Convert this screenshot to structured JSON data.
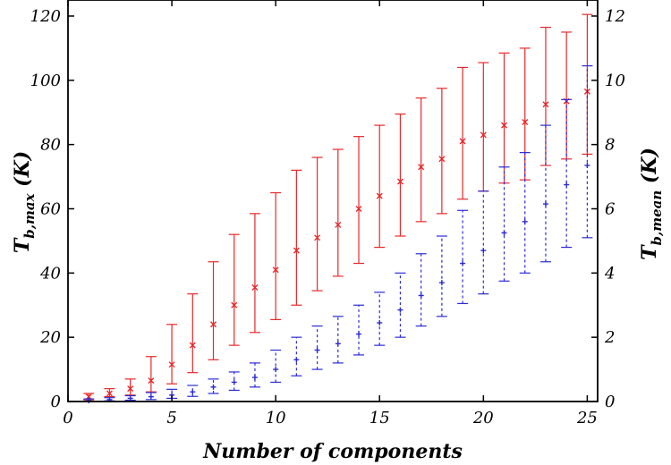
{
  "chart_data": {
    "type": "scatter",
    "xlabel": "Number of components",
    "ylabel_left": {
      "main": "T",
      "sub": "b,max",
      "unit": " (K)"
    },
    "ylabel_right": {
      "main": "T",
      "sub": "b,mean",
      "unit": " (K)"
    },
    "xlim": [
      0,
      25.5
    ],
    "ylim_left": [
      0,
      125
    ],
    "ylim_right": [
      0,
      12.5
    ],
    "x_ticks": [
      0,
      5,
      10,
      15,
      20,
      25
    ],
    "y_ticks_left": [
      0,
      20,
      40,
      60,
      80,
      100,
      120
    ],
    "y_ticks_right": [
      0,
      2,
      4,
      6,
      8,
      10,
      12
    ],
    "grid": false,
    "series": [
      {
        "axis": "left",
        "marker": "x",
        "line": "solid",
        "color": "#e8282a",
        "x": [
          1,
          2,
          3,
          4,
          5,
          6,
          7,
          8,
          9,
          10,
          11,
          12,
          13,
          14,
          15,
          16,
          17,
          18,
          19,
          20,
          21,
          22,
          23,
          24,
          25
        ],
        "y": [
          1.5,
          2.5,
          4,
          6.5,
          11.5,
          17.5,
          24,
          30,
          35.5,
          41,
          47,
          51,
          55,
          60,
          64,
          68.5,
          73,
          75.5,
          81,
          83,
          86,
          87,
          92.5,
          93.5,
          96.5
        ],
        "err_low": [
          0.5,
          1.5,
          2,
          3,
          5.5,
          9,
          13,
          17.5,
          21.5,
          25.5,
          30,
          34.5,
          39,
          43,
          48,
          51.5,
          56,
          58.5,
          63,
          65.5,
          68,
          69,
          73.5,
          75.5,
          77
        ],
        "err_high": [
          2.5,
          4,
          7,
          14,
          24,
          33.5,
          43.5,
          52,
          58.5,
          65,
          72,
          76,
          78.5,
          82.5,
          86,
          89.5,
          94.5,
          97.5,
          104,
          105.5,
          108.5,
          110,
          116.5,
          115,
          120.5
        ]
      },
      {
        "axis": "right",
        "marker": "+",
        "line": "dashed",
        "color": "#2b2bd6",
        "x": [
          1,
          2,
          3,
          4,
          5,
          6,
          7,
          8,
          9,
          10,
          11,
          12,
          13,
          14,
          15,
          16,
          17,
          18,
          19,
          20,
          21,
          22,
          23,
          24,
          25
        ],
        "y": [
          0.03,
          0.06,
          0.1,
          0.15,
          0.2,
          0.3,
          0.45,
          0.6,
          0.75,
          1.0,
          1.3,
          1.6,
          1.8,
          2.1,
          2.45,
          2.85,
          3.3,
          3.7,
          4.3,
          4.7,
          5.25,
          5.6,
          6.15,
          6.75,
          7.35
        ],
        "err_low": [
          0.0,
          0.02,
          0.04,
          0.06,
          0.1,
          0.16,
          0.25,
          0.35,
          0.45,
          0.6,
          0.8,
          1.0,
          1.2,
          1.45,
          1.75,
          2.0,
          2.35,
          2.65,
          3.05,
          3.35,
          3.75,
          4.0,
          4.35,
          4.8,
          5.1
        ],
        "err_high": [
          0.08,
          0.12,
          0.18,
          0.28,
          0.38,
          0.5,
          0.7,
          0.92,
          1.2,
          1.6,
          2.0,
          2.35,
          2.65,
          3.0,
          3.4,
          4.0,
          4.6,
          5.15,
          5.95,
          6.55,
          7.3,
          7.75,
          8.6,
          9.4,
          10.45
        ]
      }
    ]
  }
}
